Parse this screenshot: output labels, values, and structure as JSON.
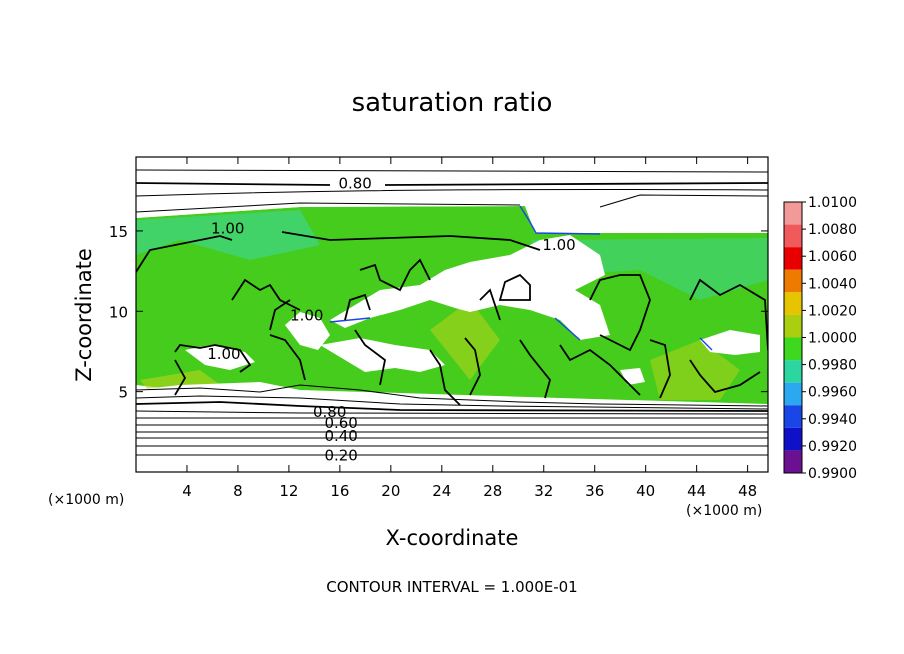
{
  "chart_data": {
    "type": "heatmap",
    "title": "saturation ratio",
    "xlabel": "X-coordinate",
    "ylabel": "Z-coordinate",
    "x_unit": "(×1000 m)",
    "x_ticks": [
      4,
      8,
      12,
      16,
      20,
      24,
      28,
      32,
      36,
      40,
      44,
      48
    ],
    "y_ticks": [
      5,
      10,
      15
    ],
    "xlim": [
      0,
      49.6
    ],
    "ylim": [
      0,
      19.6
    ],
    "footer": "CONTOUR INTERVAL = 1.000E-01",
    "colorbar": {
      "labels": [
        "1.0100",
        "1.0080",
        "1.0060",
        "1.0040",
        "1.0020",
        "1.0000",
        "0.9980",
        "0.9960",
        "0.9940",
        "0.9920",
        "0.9900"
      ],
      "colors": [
        "#f29a9a",
        "#f05a5a",
        "#e80000",
        "#ee7a00",
        "#e6c400",
        "#aacf10",
        "#3ed81e",
        "#2bd6a0",
        "#2aa8f0",
        "#1a46e8",
        "#1010c8",
        "#6a1090"
      ],
      "background_unsaturated": "#ffffff"
    },
    "contour_labels": [
      {
        "text": "0.80",
        "x": 17.2,
        "y": 18.0
      },
      {
        "text": "1.00",
        "x": 7.2,
        "y": 15.2
      },
      {
        "text": "1.00",
        "x": 33.2,
        "y": 14.2
      },
      {
        "text": "1.00",
        "x": 13.4,
        "y": 9.8
      },
      {
        "text": "1.00",
        "x": 6.9,
        "y": 7.4
      },
      {
        "text": "0.80",
        "x": 15.2,
        "y": 3.8
      },
      {
        "text": "0.60",
        "x": 16.1,
        "y": 3.1
      },
      {
        "text": "0.40",
        "x": 16.1,
        "y": 2.3
      },
      {
        "text": "0.20",
        "x": 16.1,
        "y": 1.1
      }
    ]
  }
}
